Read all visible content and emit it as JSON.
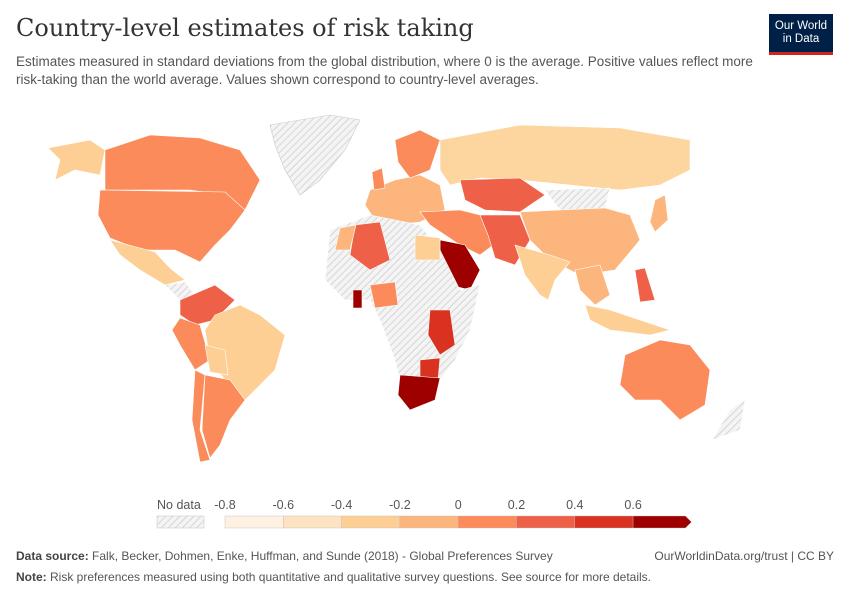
{
  "header": {
    "title": "Country-level estimates of risk taking",
    "subtitle": "Estimates measured in standard deviations from the global distribution, where 0 is the average. Positive values reflect more risk-taking than the world average. Values shown correspond to country-level averages.",
    "logo_text": "Our World in Data"
  },
  "legend": {
    "no_data_label": "No data",
    "ticks": [
      "-0.8",
      "-0.6",
      "-0.4",
      "-0.2",
      "0",
      "0.2",
      "0.4",
      "0.6"
    ],
    "bin_colors": [
      "#fef1e1",
      "#fee3c2",
      "#fdcf94",
      "#fcb57d",
      "#fb8b5a",
      "#ee6148",
      "#d93220",
      "#9e0000"
    ],
    "no_data_color": "#e0e0e0"
  },
  "footer": {
    "source_label": "Data source:",
    "source_text": "Falk, Becker, Dohmen, Enke, Huffman, and Sunde (2018) - Global Preferences Survey",
    "license": "OurWorldinData.org/trust | CC BY",
    "note_label": "Note:",
    "note_text": "Risk preferences measured using both quantitative and qualitative survey questions. See source for more details."
  }
}
